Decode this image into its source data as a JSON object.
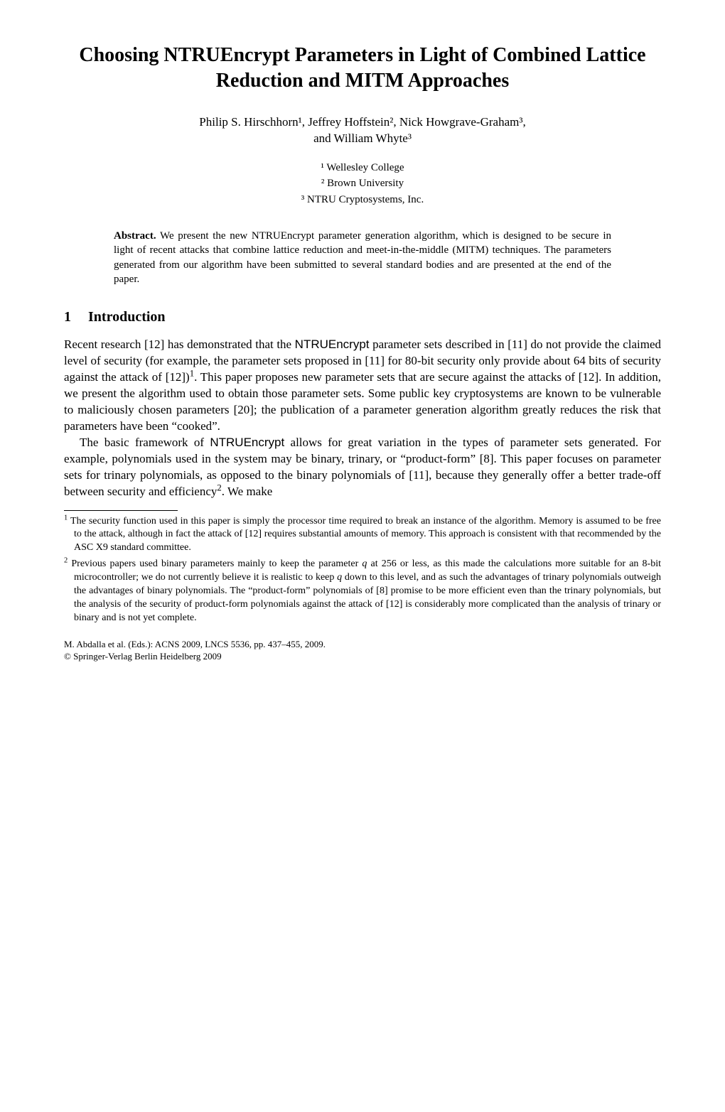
{
  "title": "Choosing NTRUEncrypt Parameters in Light of Combined Lattice Reduction and MITM Approaches",
  "authors_line1": "Philip S. Hirschhorn¹, Jeffrey Hoffstein², Nick Howgrave-Graham³,",
  "authors_line2": "and William Whyte³",
  "affiliations": {
    "a1": "¹ Wellesley College",
    "a2": "² Brown University",
    "a3": "³ NTRU Cryptosystems, Inc."
  },
  "abstract": {
    "head": "Abstract.",
    "text": " We present the new NTRUEncrypt parameter generation algorithm, which is designed to be secure in light of recent attacks that combine lattice reduction and meet-in-the-middle (MITM) techniques. The parameters generated from our algorithm have been submitted to several standard bodies and are presented at the end of the paper."
  },
  "section1": {
    "num": "1",
    "title": "Introduction"
  },
  "para1_a": "Recent research [12] has demonstrated that the ",
  "para1_sf1": "NTRUEncrypt",
  "para1_b": " parameter sets described in [11] do not provide the claimed level of security (for example, the parameter sets proposed in [11] for 80-bit security only provide about 64 bits of security against the attack of [12])",
  "para1_sup1": "1",
  "para1_c": ". This paper proposes new parameter sets that are secure against the attacks of [12]. In addition, we present the algorithm used to obtain those parameter sets. Some public key cryptosystems are known to be vulnerable to maliciously chosen parameters [20]; the publication of a parameter generation algorithm greatly reduces the risk that parameters have been “cooked”.",
  "para2_a": "The basic framework of ",
  "para2_sf1": "NTRUEncrypt",
  "para2_b": " allows for great variation in the types of parameter sets generated. For example, polynomials used in the system may be binary, trinary, or “product-form” [8]. This paper focuses on parameter sets for trinary polynomials, as opposed to the binary polynomials of [11], because they generally offer a better trade-off between security and efficiency",
  "para2_sup1": "2",
  "para2_c": ". We make",
  "footnotes": {
    "fn1_num": "1",
    "fn1_text": " The security function used in this paper is simply the processor time required to break an instance of the algorithm. Memory is assumed to be free to the attack, although in fact the attack of [12] requires substantial amounts of memory. This approach is consistent with that recommended by the ASC X9 standard committee.",
    "fn2_num": "2",
    "fn2_a": " Previous papers used binary parameters mainly to keep the parameter ",
    "fn2_q": "q",
    "fn2_b": " at 256 or less, as this made the calculations more suitable for an 8-bit microcontroller; we do not currently believe it is realistic to keep ",
    "fn2_q2": "q",
    "fn2_c": " down to this level, and as such the advantages of trinary polynomials outweigh the advantages of binary polynomials. The “product-form” polynomials of [8] promise to be more efficient even than the trinary polynomials, but the analysis of the security of product-form polynomials against the attack of [12] is considerably more complicated than the analysis of trinary or binary and is not yet complete."
  },
  "proc": "M. Abdalla et al. (Eds.): ACNS 2009, LNCS 5536, pp. 437–455, 2009.",
  "copyright": "© Springer-Verlag Berlin Heidelberg 2009"
}
